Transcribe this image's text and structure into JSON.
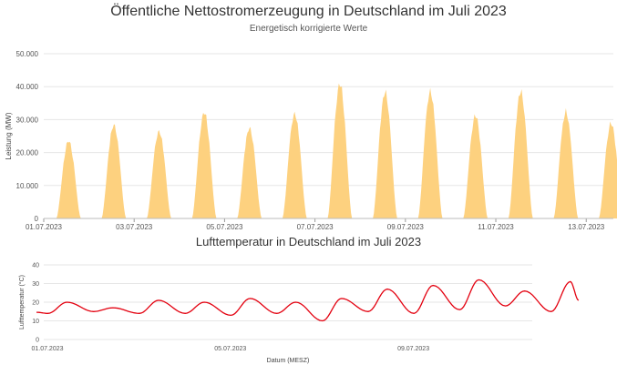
{
  "chart_data": [
    {
      "type": "area",
      "title": "Öffentliche Nettostromerzeugung in Deutschland im Juli 2023",
      "subtitle": "Energetisch korrigierte Werte",
      "xlabel": "",
      "ylabel": "Leistung (MW)",
      "ylim": [
        0,
        50000
      ],
      "y_ticks": [
        "0",
        "10.000",
        "20.000",
        "30.000",
        "40.000",
        "50.000"
      ],
      "x_tick_labels": [
        "01.07.2023",
        "03.07.2023",
        "05.07.2023",
        "07.07.2023",
        "09.07.2023",
        "11.07.2023",
        "13.07.2023"
      ],
      "grid": true,
      "color": "#fdd17f",
      "series": [
        {
          "x": [
            "01.07.2023",
            "02.07.2023",
            "03.07.2023",
            "04.07.2023",
            "05.07.2023",
            "06.07.2023",
            "07.07.2023",
            "08.07.2023",
            "09.07.2023",
            "10.07.2023",
            "11.07.2023",
            "12.07.2023",
            "13.07.2023"
          ],
          "values": [
            24500,
            29500,
            27500,
            33500,
            28500,
            33000,
            42500,
            39800,
            40000,
            32500,
            40000,
            33500,
            30000
          ]
        }
      ]
    },
    {
      "type": "line",
      "title": "Lufttemperatur in Deutschland im Juli 2023",
      "xlabel": "Datum (MESZ)",
      "ylabel": "Lufttemperatur (°C)",
      "ylim": [
        0,
        40
      ],
      "y_ticks": [
        "0",
        "10",
        "20",
        "30",
        "40"
      ],
      "x_tick_labels": [
        "01.07.2023",
        "05.07.2023",
        "09.07.2023"
      ],
      "grid": true,
      "color": "#e3000f",
      "series": [
        {
          "x": [
            "01.07.2023",
            "02.07.2023",
            "03.07.2023",
            "04.07.2023",
            "05.07.2023",
            "06.07.2023",
            "07.07.2023",
            "08.07.2023",
            "09.07.2023",
            "10.07.2023",
            "11.07.2023",
            "12.07.2023"
          ],
          "max": [
            20,
            17,
            21,
            20,
            22,
            20,
            22,
            27,
            29,
            32,
            26,
            31
          ],
          "min": [
            14,
            15,
            14,
            14,
            13,
            14,
            10,
            15,
            14,
            16,
            18,
            15
          ]
        }
      ]
    }
  ]
}
